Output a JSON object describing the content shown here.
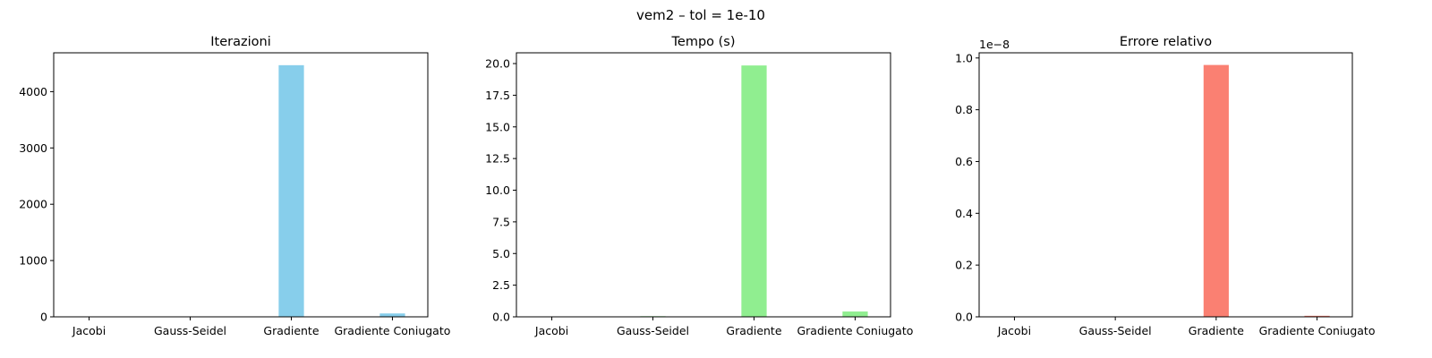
{
  "figure": {
    "suptitle": "vem2 – tol = 1e-10"
  },
  "chart_data": [
    {
      "type": "bar",
      "title": "Iterazioni",
      "categories": [
        "Jacobi",
        "Gauss-Seidel",
        "Gradiente",
        "Gradiente Coniugato"
      ],
      "values": [
        3,
        2,
        4470,
        60
      ],
      "ylim": [
        0,
        4690
      ],
      "yticks": [
        0,
        1000,
        2000,
        3000,
        4000
      ],
      "ytick_labels": [
        "0",
        "1000",
        "2000",
        "3000",
        "4000"
      ],
      "offset_label": "",
      "color": "#87ceeb",
      "grid": false
    },
    {
      "type": "bar",
      "title": "Tempo (s)",
      "categories": [
        "Jacobi",
        "Gauss-Seidel",
        "Gradiente",
        "Gradiente Coniugato"
      ],
      "values": [
        0.02,
        0.05,
        19.85,
        0.42
      ],
      "ylim": [
        0,
        20.85
      ],
      "yticks": [
        0,
        2.5,
        5,
        7.5,
        10,
        12.5,
        15,
        17.5,
        20
      ],
      "ytick_labels": [
        "0.0",
        "2.5",
        "5.0",
        "7.5",
        "10.0",
        "12.5",
        "15.0",
        "17.5",
        "20.0"
      ],
      "offset_label": "",
      "color": "#90ee90",
      "grid": false
    },
    {
      "type": "bar",
      "title": "Errore relativo",
      "categories": [
        "Jacobi",
        "Gauss-Seidel",
        "Gradiente",
        "Gradiente Coniugato"
      ],
      "values": [
        0.001,
        0.001,
        0.973,
        0.004
      ],
      "ylim": [
        0,
        1.02
      ],
      "yticks": [
        0,
        0.2,
        0.4,
        0.6,
        0.8,
        1.0
      ],
      "ytick_labels": [
        "0.0",
        "0.2",
        "0.4",
        "0.6",
        "0.8",
        "1.0"
      ],
      "offset_label": "1e−8",
      "color": "#fa8072",
      "grid": false
    }
  ]
}
